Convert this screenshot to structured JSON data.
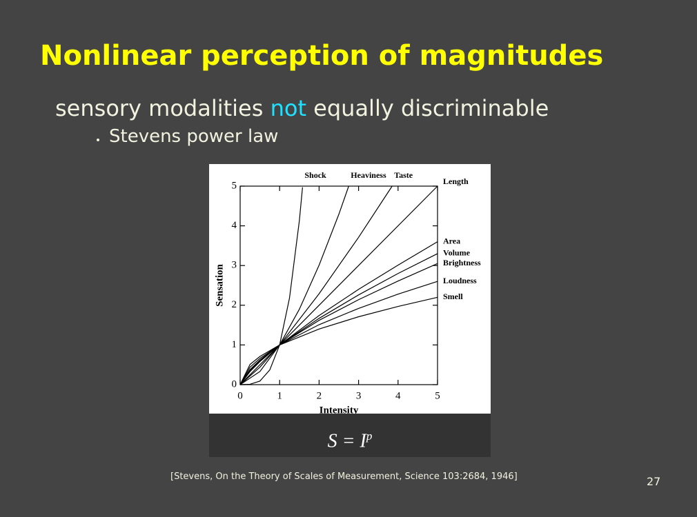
{
  "slide": {
    "title": "Nonlinear perception of magnitudes",
    "bullet": {
      "before": "sensory modalities ",
      "highlight": "not",
      "after": " equally discriminable"
    },
    "sub_bullet": "Stevens power law",
    "formula": {
      "base": "S = I",
      "exponent": "p"
    },
    "citation": "[Stevens, On the Theory of Scales of Measurement, Science 103:2684, 1946]",
    "page_number": "27"
  },
  "chart_data": {
    "type": "line",
    "x_label": "Intensity",
    "y_label": "Sensation",
    "xlim": [
      0,
      5
    ],
    "ylim": [
      0,
      5
    ],
    "xticks": [
      0,
      1,
      2,
      3,
      4,
      5
    ],
    "yticks": [
      0,
      1,
      2,
      3,
      4,
      5
    ],
    "color": "#000000",
    "series": [
      {
        "name": "Shock",
        "x": [
          0,
          0.25,
          0.5,
          0.75,
          1,
          1.25,
          1.5,
          1.58
        ],
        "values": [
          0,
          0.01,
          0.09,
          0.37,
          1,
          2.18,
          4.13,
          4.97
        ]
      },
      {
        "name": "Heaviness",
        "x": [
          0,
          0.5,
          1,
          1.5,
          2,
          2.5,
          2.75
        ],
        "values": [
          0,
          0.33,
          1,
          1.9,
          3.01,
          4.29,
          5
        ]
      },
      {
        "name": "Taste",
        "x": [
          0,
          0.5,
          1,
          2,
          3,
          3.85
        ],
        "values": [
          0,
          0.44,
          1,
          2.29,
          3.71,
          5
        ]
      },
      {
        "name": "Length",
        "x": [
          0,
          1,
          5
        ],
        "values": [
          0,
          1,
          5
        ]
      },
      {
        "name": "Area",
        "x": [
          0,
          0.25,
          0.5,
          1,
          2,
          3,
          4,
          5
        ],
        "values": [
          0,
          0.33,
          0.58,
          1,
          1.74,
          2.4,
          3.01,
          3.6
        ]
      },
      {
        "name": "Volume",
        "x": [
          0,
          0.25,
          0.5,
          1,
          2,
          3,
          4,
          5
        ],
        "values": [
          0,
          0.36,
          0.6,
          1,
          1.67,
          2.26,
          2.8,
          3.3
        ]
      },
      {
        "name": "Brightness",
        "x": [
          0,
          0.25,
          0.5,
          1,
          2,
          3,
          4,
          5
        ],
        "values": [
          0,
          0.38,
          0.62,
          1,
          1.62,
          2.14,
          2.61,
          3.05
        ]
      },
      {
        "name": "Loudness",
        "x": [
          0,
          0.25,
          0.5,
          1,
          2,
          3,
          4,
          5
        ],
        "values": [
          0,
          0.44,
          0.66,
          1,
          1.51,
          1.92,
          2.28,
          2.6
        ]
      },
      {
        "name": "Smell",
        "x": [
          0,
          0.25,
          0.5,
          1,
          2,
          3,
          4,
          5
        ],
        "values": [
          0,
          0.51,
          0.71,
          1,
          1.4,
          1.71,
          1.97,
          2.2
        ]
      }
    ]
  }
}
